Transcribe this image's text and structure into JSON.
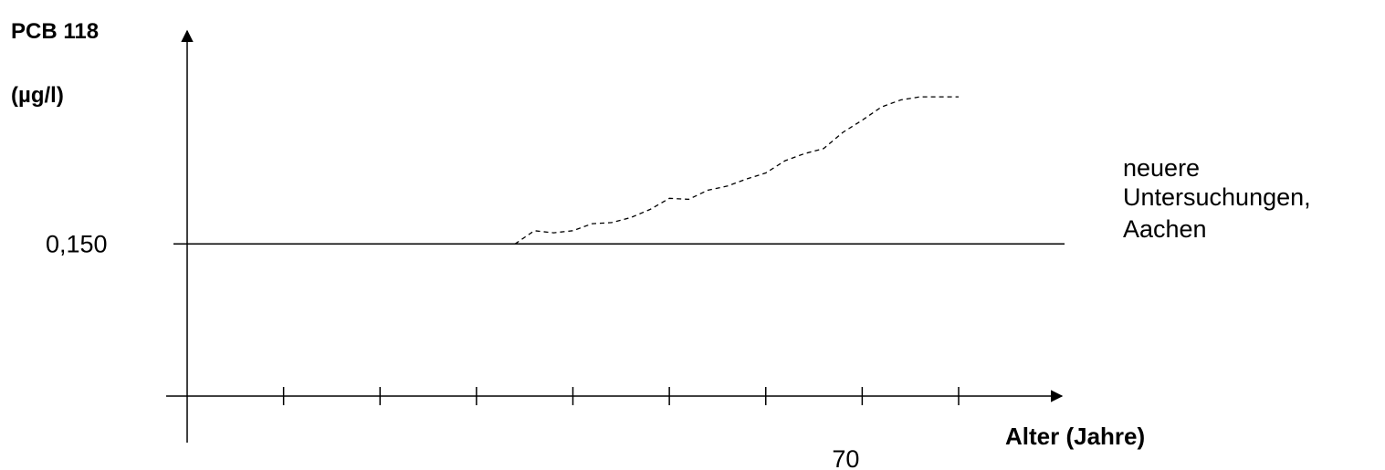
{
  "chart_data": {
    "type": "line",
    "ylabel_line1": "PCB 118",
    "ylabel_line2": "(µg/l)",
    "xlabel": "Alter (Jahre)",
    "reference_line": {
      "value": 0.15,
      "label": "0,150"
    },
    "x_tick_label": "70",
    "annotation": [
      "neuere",
      "Untersuchungen,",
      "Aachen"
    ],
    "ylim": [
      0,
      0.35
    ],
    "xlim": [
      0,
      80
    ],
    "x_ticks": [
      10,
      20,
      30,
      40,
      50,
      60,
      70,
      80
    ],
    "x_tick_label_at": 70,
    "series": [
      {
        "style": "dashed",
        "x": [
          34,
          36,
          38,
          40,
          42,
          44,
          46,
          48,
          50,
          52,
          54,
          56,
          58,
          60,
          62,
          64,
          66,
          68,
          70,
          72,
          74,
          76,
          78,
          80
        ],
        "y": [
          0.15,
          0.163,
          0.161,
          0.163,
          0.17,
          0.171,
          0.176,
          0.184,
          0.195,
          0.194,
          0.203,
          0.207,
          0.214,
          0.22,
          0.232,
          0.239,
          0.244,
          0.26,
          0.272,
          0.285,
          0.292,
          0.295,
          0.295,
          0.295
        ]
      }
    ]
  },
  "colors": {
    "ink": "#000000",
    "background": "#ffffff"
  }
}
